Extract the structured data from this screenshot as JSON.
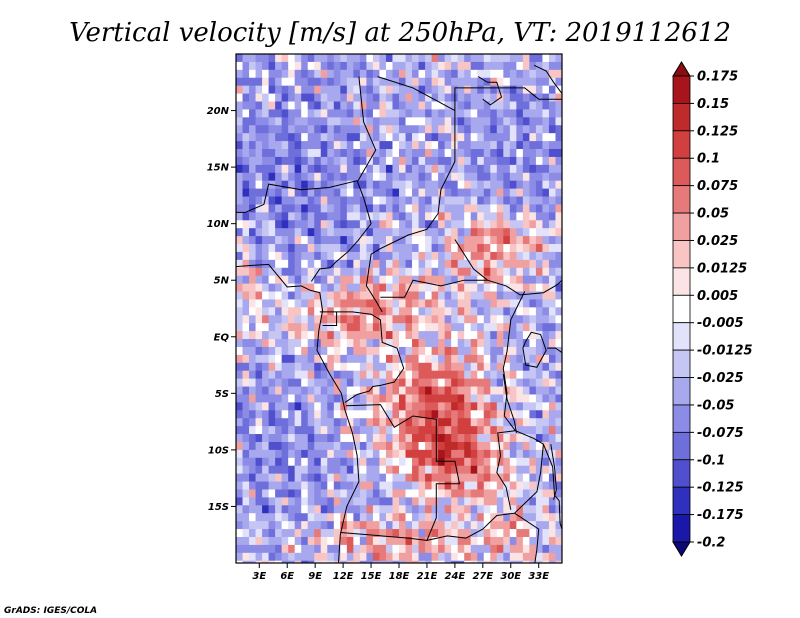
{
  "chart_data": {
    "type": "heatmap",
    "title": "Vertical velocity [m/s] at 250hPa, VT: 2019112612",
    "xlabel": "",
    "ylabel": "",
    "x_ticks": [
      "3E",
      "6E",
      "9E",
      "12E",
      "15E",
      "18E",
      "21E",
      "24E",
      "27E",
      "30E",
      "33E"
    ],
    "x_tick_values": [
      3,
      6,
      9,
      12,
      15,
      18,
      21,
      24,
      27,
      30,
      33
    ],
    "y_ticks": [
      "20N",
      "15N",
      "10N",
      "5N",
      "EQ",
      "5S",
      "10S",
      "15S"
    ],
    "y_tick_values": [
      20,
      15,
      10,
      5,
      0,
      -5,
      -10,
      -15
    ],
    "xlim": [
      0.5,
      35.5
    ],
    "ylim": [
      -20,
      25
    ],
    "units": "m/s",
    "colorbar": {
      "labels": [
        "0.175",
        "0.15",
        "0.125",
        "0.1",
        "0.075",
        "0.05",
        "0.025",
        "0.0125",
        "0.005",
        "-0.005",
        "-0.0125",
        "-0.025",
        "-0.05",
        "-0.075",
        "-0.1",
        "-0.125",
        "-0.175",
        "-0.2"
      ],
      "colors": [
        "#8b0d14",
        "#a8141c",
        "#bf2a2a",
        "#d13f3f",
        "#dc5a5a",
        "#e67a7a",
        "#f0a0a0",
        "#f8c4c4",
        "#fde4e4",
        "#ffffff",
        "#e2e2fb",
        "#c6c6f5",
        "#a8a8ee",
        "#8c8ce6",
        "#6f6fdc",
        "#5050cf",
        "#3030be",
        "#1a18a8",
        "#0c0878"
      ]
    },
    "grid": false,
    "legend": "right"
  },
  "credit": "GrADS: IGES/COLA"
}
